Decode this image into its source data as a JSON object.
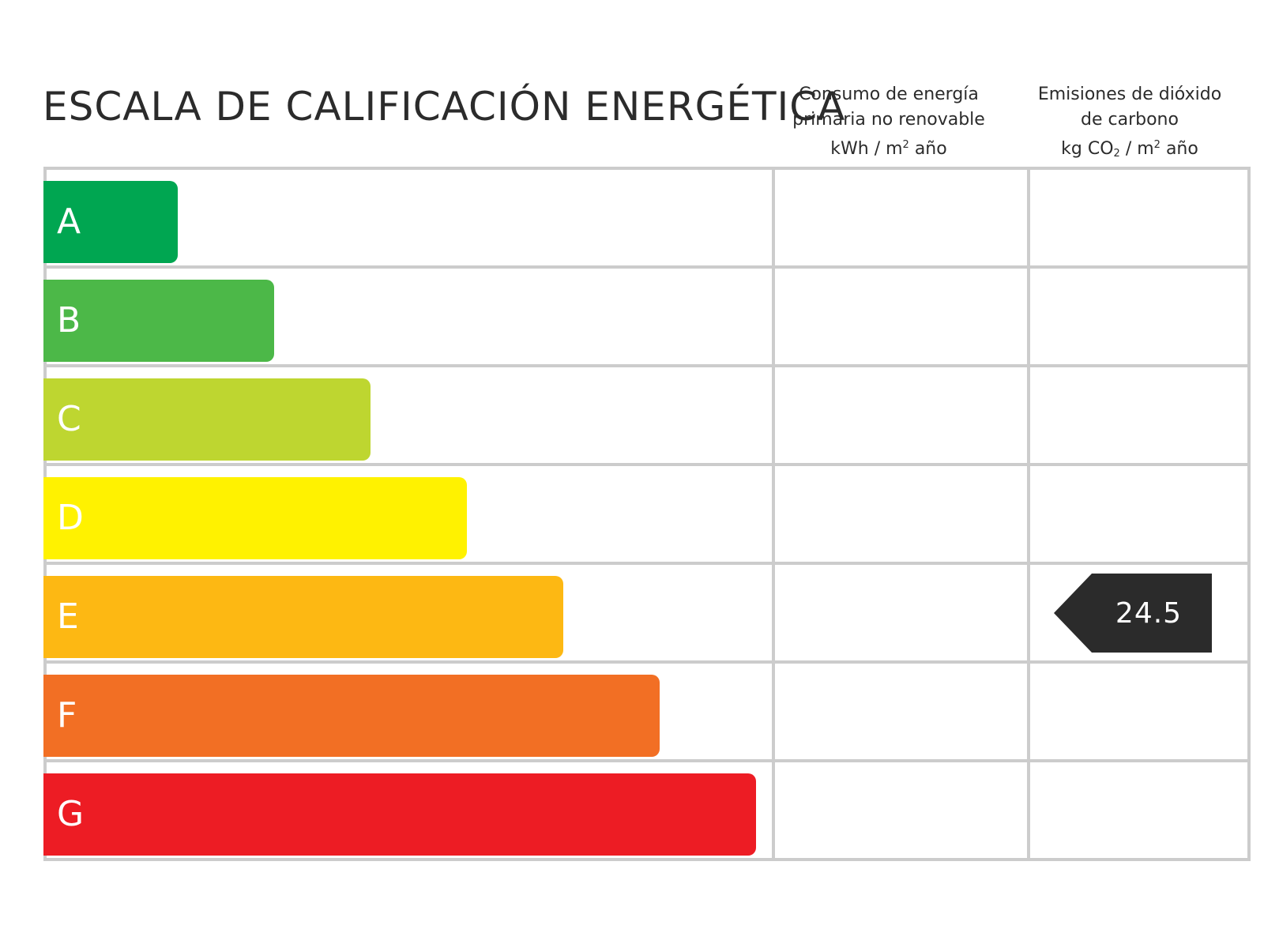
{
  "title": "ESCALA DE CALIFICACIÓN ENERGÉTICA",
  "columns": {
    "consumo": {
      "line1": "Consumo de energía",
      "line2": "primaria no renovable",
      "unit_a": "kWh / m",
      "unit_sup": "2",
      "unit_b": " año"
    },
    "emisiones": {
      "line1": "Emisiones de dióxido",
      "line2": "de carbono",
      "unit_a": "kg CO",
      "unit_sub": "2",
      "unit_mid": " / m",
      "unit_sup": "2",
      "unit_b": " año"
    }
  },
  "chart_data": {
    "type": "bar",
    "categories": [
      "A",
      "B",
      "C",
      "D",
      "E",
      "F",
      "G"
    ],
    "colors": [
      "#00a651",
      "#4cb848",
      "#bed630",
      "#fff200",
      "#fdb813",
      "#f26f24",
      "#ed1c24"
    ],
    "relative_lengths": [
      1,
      2,
      3,
      4,
      5,
      6,
      7
    ],
    "indicators": [
      {
        "column": "emisiones",
        "category": "E",
        "value": "24.5",
        "color": "#2b2b2b"
      }
    ]
  }
}
